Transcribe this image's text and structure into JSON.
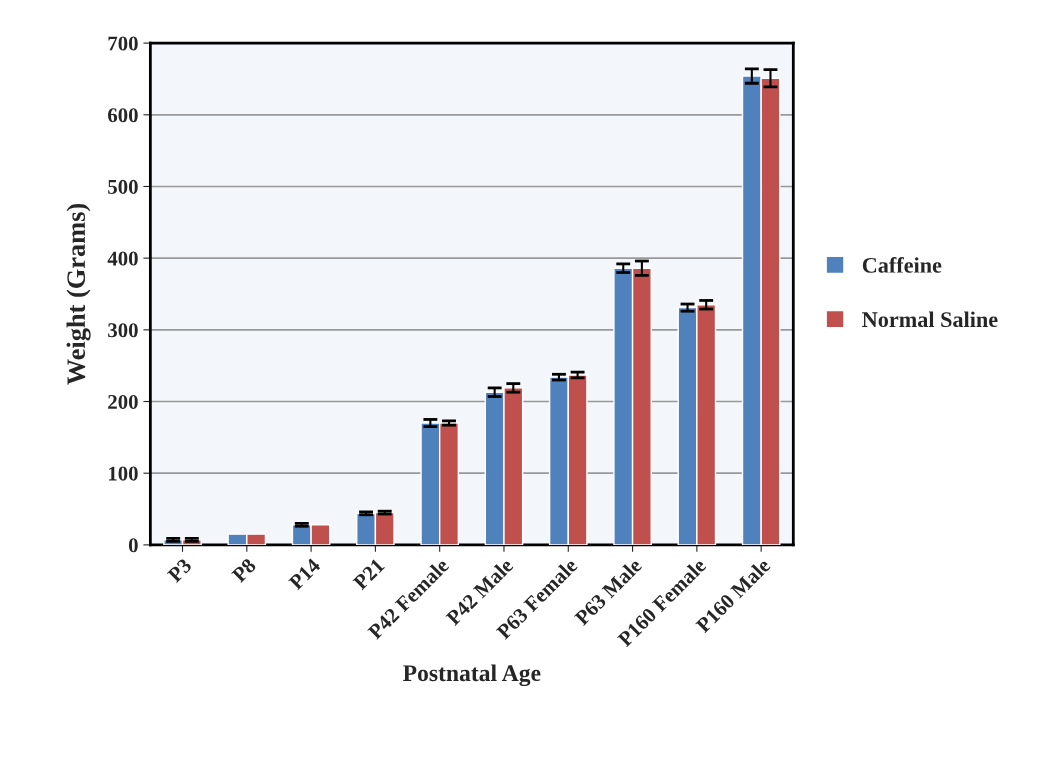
{
  "chart_data": {
    "type": "bar",
    "xlabel": "Postnatal Age",
    "ylabel": "Weight (Grams)",
    "categories": [
      "P3",
      "P8",
      "P14",
      "P21",
      "P42 Female",
      "P42 Male",
      "P63 Female",
      "P63 Male",
      "P160 Female",
      "P160 Male"
    ],
    "series": [
      {
        "name": "Caffeine",
        "color": "#4f81bd",
        "values": [
          7,
          15,
          28,
          44,
          170,
          213,
          234,
          386,
          331,
          654
        ],
        "errors": [
          2,
          null,
          2,
          2,
          5,
          6,
          4,
          6,
          5,
          10
        ]
      },
      {
        "name": "Normal Saline",
        "color": "#c0504d",
        "values": [
          7,
          15,
          28,
          45,
          170,
          219,
          237,
          386,
          335,
          651
        ],
        "errors": [
          2,
          null,
          null,
          2,
          3,
          6,
          4,
          10,
          6,
          12
        ]
      }
    ],
    "ylim": [
      0,
      700
    ],
    "yticks": [
      0,
      100,
      200,
      300,
      400,
      500,
      600,
      700
    ],
    "grid": "y",
    "legend": "right"
  }
}
